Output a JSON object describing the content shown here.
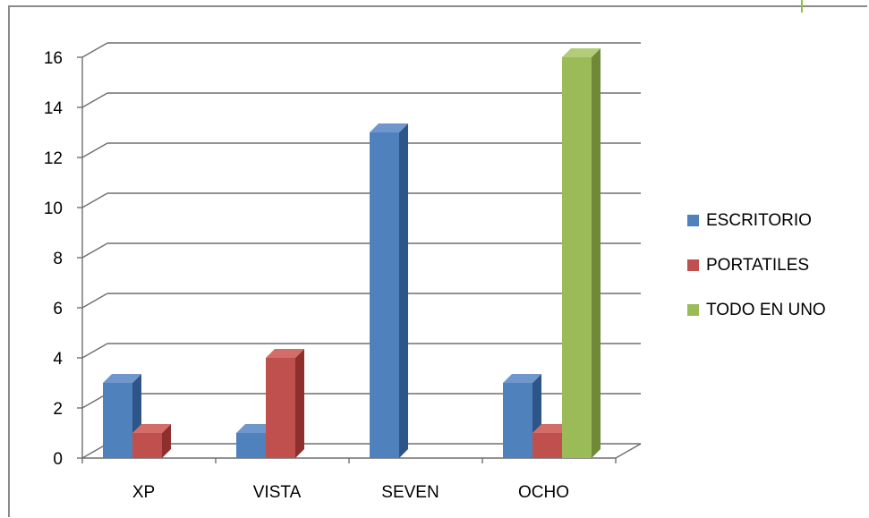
{
  "chart_data": {
    "type": "bar",
    "title": "",
    "xlabel": "",
    "ylabel": "",
    "categories": [
      "XP",
      "VISTA",
      "SEVEN",
      "OCHO"
    ],
    "series": [
      {
        "name": "ESCRITORIO",
        "color": "#4f81bd",
        "side": "#2e5587",
        "top": "#6f97cc",
        "values": [
          3,
          1,
          13,
          3
        ]
      },
      {
        "name": "PORTATILES",
        "color": "#c0504d",
        "side": "#8e2f2d",
        "top": "#d26d6a",
        "values": [
          1,
          4,
          0,
          1
        ]
      },
      {
        "name": "TODO EN UNO",
        "color": "#9bbb59",
        "side": "#6e8a39",
        "top": "#b2cc7a",
        "values": [
          0,
          0,
          0,
          16
        ]
      }
    ],
    "ylim": [
      0,
      16
    ],
    "yticks": [
      0,
      2,
      4,
      6,
      8,
      10,
      12,
      14,
      16
    ],
    "grid": true,
    "legend_position": "right",
    "style": "3d-clustered-column"
  }
}
